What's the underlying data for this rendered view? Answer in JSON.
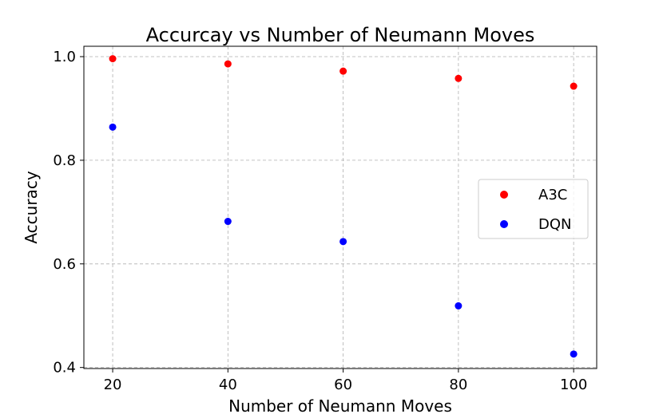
{
  "chart_data": {
    "type": "scatter",
    "title": "Accurcay vs Number of Neumann Moves",
    "xlabel": "Number of Neumann Moves",
    "ylabel": "Accuracy",
    "xlim": [
      15,
      104
    ],
    "ylim": [
      0.398,
      1.02
    ],
    "xticks": [
      20,
      40,
      60,
      80,
      100
    ],
    "yticks": [
      0.4,
      0.6,
      0.8,
      1.0
    ],
    "xtick_labels": [
      "20",
      "40",
      "60",
      "80",
      "100"
    ],
    "ytick_labels": [
      "0.4",
      "0.6",
      "0.8",
      "1.0"
    ],
    "grid": true,
    "legend_position": "center-right",
    "series": [
      {
        "name": "A3C",
        "color": "#ff0000",
        "x": [
          20,
          40,
          60,
          80,
          100
        ],
        "y": [
          0.996,
          0.986,
          0.972,
          0.958,
          0.943
        ]
      },
      {
        "name": "DQN",
        "color": "#0000ff",
        "x": [
          20,
          40,
          60,
          80,
          100
        ],
        "y": [
          0.864,
          0.682,
          0.643,
          0.519,
          0.426
        ]
      }
    ]
  }
}
